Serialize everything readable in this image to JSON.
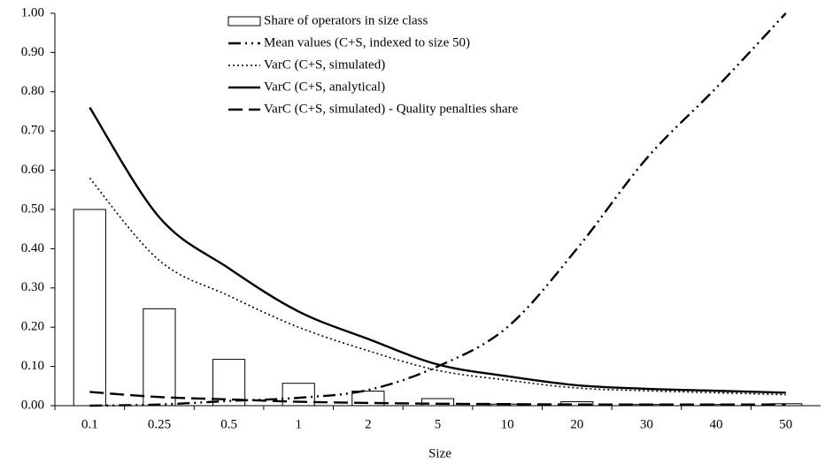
{
  "chart_data": {
    "type": "combo",
    "x_label": "Size",
    "categories": [
      "0.1",
      "0.25",
      "0.5",
      "1",
      "2",
      "5",
      "10",
      "20",
      "30",
      "40",
      "50"
    ],
    "ylim": [
      0,
      1
    ],
    "yticks": [
      {
        "value": 0,
        "label": "0.00"
      },
      {
        "value": 0.1,
        "label": "0.10"
      },
      {
        "value": 0.2,
        "label": "0.20"
      },
      {
        "value": 0.3,
        "label": "0.30"
      },
      {
        "value": 0.4,
        "label": "0.40"
      },
      {
        "value": 0.5,
        "label": "0.50"
      },
      {
        "value": 0.6,
        "label": "0.60"
      },
      {
        "value": 0.7,
        "label": "0.70"
      },
      {
        "value": 0.8,
        "label": "0.80"
      },
      {
        "value": 0.9,
        "label": "0.90"
      },
      {
        "value": 1,
        "label": "1.00"
      }
    ],
    "series": [
      {
        "name": "Share of operators in size class",
        "type": "bar",
        "color": "#000000",
        "values": [
          0.5,
          0.247,
          0.118,
          0.057,
          0.037,
          0.018,
          0.004,
          0.01,
          0.003,
          0.003,
          0.005
        ]
      },
      {
        "name": "Mean values (C+S, indexed to size 50)",
        "type": "line",
        "line_style": "dash-dot-dot",
        "color": "#000000",
        "values": [
          0.0,
          0.003,
          0.012,
          0.02,
          0.04,
          0.1,
          0.2,
          0.4,
          0.63,
          0.81,
          1.0
        ]
      },
      {
        "name": "VarC (C+S, simulated)",
        "type": "line",
        "line_style": "dotted",
        "color": "#000000",
        "values": [
          0.58,
          0.37,
          0.28,
          0.2,
          0.14,
          0.09,
          0.065,
          0.045,
          0.038,
          0.033,
          0.028
        ]
      },
      {
        "name": "VarC (C+S, analytical)",
        "type": "line",
        "line_style": "solid",
        "color": "#000000",
        "values": [
          0.76,
          0.48,
          0.35,
          0.24,
          0.17,
          0.105,
          0.075,
          0.052,
          0.043,
          0.038,
          0.033
        ]
      },
      {
        "name": "VarC (C+S, simulated) - Quality penalties share",
        "type": "line",
        "line_style": "dashed",
        "color": "#000000",
        "values": [
          0.035,
          0.022,
          0.016,
          0.01,
          0.007,
          0.005,
          0.004,
          0.003,
          0.003,
          0.003,
          0.003
        ]
      }
    ]
  }
}
